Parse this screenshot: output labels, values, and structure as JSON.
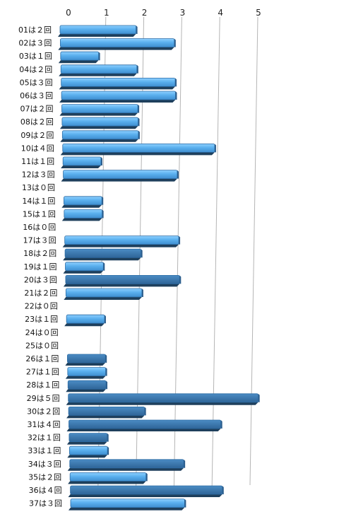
{
  "chart_data": {
    "type": "bar",
    "orientation": "horizontal",
    "style": "3d",
    "categories": [
      "01は２回",
      "02は３回",
      "03は１回",
      "04は２回",
      "05は３回",
      "06は３回",
      "07は２回",
      "08は２回",
      "09は２回",
      "10は４回",
      "11は１回",
      "12は３回",
      "13は０回",
      "14は１回",
      "15は１回",
      "16は０回",
      "17は３回",
      "18は２回",
      "19は１回",
      "20は３回",
      "21は２回",
      "22は０回",
      "23は１回",
      "24は０回",
      "25は０回",
      "26は１回",
      "27は１回",
      "28は１回",
      "29は５回",
      "30は２回",
      "31は４回",
      "32は１回",
      "33は１回",
      "34は３回",
      "35は２回",
      "36は４回",
      "37は３回"
    ],
    "values": [
      2,
      3,
      1,
      2,
      3,
      3,
      2,
      2,
      2,
      4,
      1,
      3,
      0,
      1,
      1,
      0,
      3,
      2,
      1,
      3,
      2,
      0,
      1,
      0,
      0,
      1,
      1,
      1,
      5,
      2,
      4,
      1,
      1,
      3,
      2,
      4,
      3
    ],
    "xticks": [
      "0",
      "1",
      "2",
      "3",
      "4",
      "5"
    ],
    "xlim": [
      0,
      5
    ],
    "title": "",
    "xlabel": "",
    "ylabel": "",
    "grid": "vertical",
    "legend": "none",
    "colors": {
      "bar_light": "#5ab0ee",
      "bar_dark": "#3a78b0",
      "bar_shadow": "#1e3f5c",
      "grid": "#b5b5b5"
    }
  }
}
